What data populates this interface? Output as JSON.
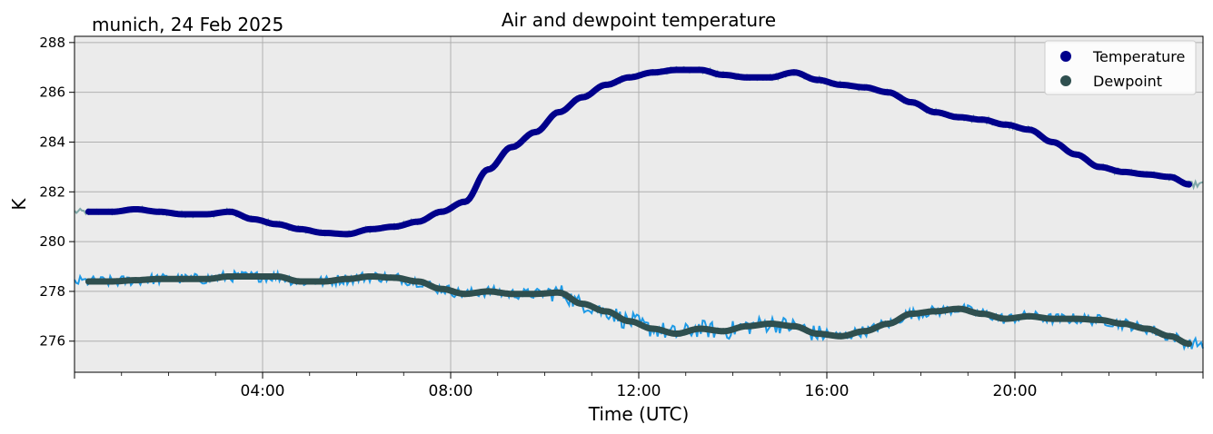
{
  "chart_data": {
    "type": "line",
    "title": "Air and dewpoint temperature",
    "subtitle": "munich, 24 Feb 2025",
    "xlabel": "Time (UTC)",
    "ylabel": "K",
    "xlim": [
      0,
      24
    ],
    "ylim": [
      274.75,
      288.25
    ],
    "x_ticks": [
      {
        "value": 4,
        "label": "04:00"
      },
      {
        "value": 8,
        "label": "08:00"
      },
      {
        "value": 12,
        "label": "12:00"
      },
      {
        "value": 16,
        "label": "16:00"
      },
      {
        "value": 20,
        "label": "20:00"
      }
    ],
    "y_ticks": [
      276,
      278,
      280,
      282,
      284,
      286,
      288
    ],
    "grid": true,
    "legend_position": "top-right",
    "colors": {
      "temperature": "#00008b",
      "dewpoint": "#2f4f4f",
      "temperature_raw": "#7fa8a8",
      "dewpoint_raw": "#1e9ae6",
      "plot_background": "#ebebeb"
    },
    "series": [
      {
        "name": "Temperature",
        "x": [
          0.3,
          0.8,
          1.3,
          1.8,
          2.3,
          2.8,
          3.3,
          3.8,
          4.3,
          4.8,
          5.3,
          5.8,
          6.3,
          6.8,
          7.3,
          7.8,
          8.3,
          8.8,
          9.3,
          9.8,
          10.3,
          10.8,
          11.3,
          11.8,
          12.3,
          12.8,
          13.3,
          13.8,
          14.3,
          14.8,
          15.3,
          15.8,
          16.3,
          16.8,
          17.3,
          17.8,
          18.3,
          18.8,
          19.3,
          19.8,
          20.3,
          20.8,
          21.3,
          21.8,
          22.3,
          22.8,
          23.3,
          23.7
        ],
        "values": [
          281.2,
          281.2,
          281.3,
          281.2,
          281.1,
          281.1,
          281.2,
          280.9,
          280.7,
          280.5,
          280.35,
          280.3,
          280.5,
          280.6,
          280.8,
          281.2,
          281.6,
          282.9,
          283.8,
          284.4,
          285.2,
          285.8,
          286.3,
          286.6,
          286.8,
          286.9,
          286.9,
          286.7,
          286.6,
          286.6,
          286.8,
          286.5,
          286.3,
          286.2,
          286.0,
          285.6,
          285.2,
          285.0,
          284.9,
          284.7,
          284.5,
          284.0,
          283.5,
          283.0,
          282.8,
          282.7,
          282.6,
          282.3
        ]
      },
      {
        "name": "Dewpoint",
        "x": [
          0.3,
          0.8,
          1.3,
          1.8,
          2.3,
          2.8,
          3.3,
          3.8,
          4.3,
          4.8,
          5.3,
          5.8,
          6.3,
          6.8,
          7.3,
          7.8,
          8.3,
          8.8,
          9.3,
          9.8,
          10.3,
          10.8,
          11.3,
          11.8,
          12.3,
          12.8,
          13.3,
          13.8,
          14.3,
          14.8,
          15.3,
          15.8,
          16.3,
          16.8,
          17.3,
          17.8,
          18.3,
          18.8,
          19.3,
          19.8,
          20.3,
          20.8,
          21.3,
          21.8,
          22.3,
          22.8,
          23.3,
          23.7
        ],
        "values": [
          278.4,
          278.4,
          278.45,
          278.5,
          278.5,
          278.5,
          278.6,
          278.6,
          278.6,
          278.4,
          278.4,
          278.5,
          278.6,
          278.55,
          278.4,
          278.1,
          277.9,
          278.0,
          277.9,
          277.9,
          277.95,
          277.5,
          277.2,
          276.8,
          276.5,
          276.3,
          276.5,
          276.4,
          276.6,
          276.7,
          276.6,
          276.3,
          276.2,
          276.4,
          276.7,
          277.1,
          277.2,
          277.3,
          277.1,
          276.9,
          277.0,
          276.9,
          276.9,
          276.85,
          276.7,
          276.5,
          276.2,
          275.9
        ]
      }
    ]
  }
}
